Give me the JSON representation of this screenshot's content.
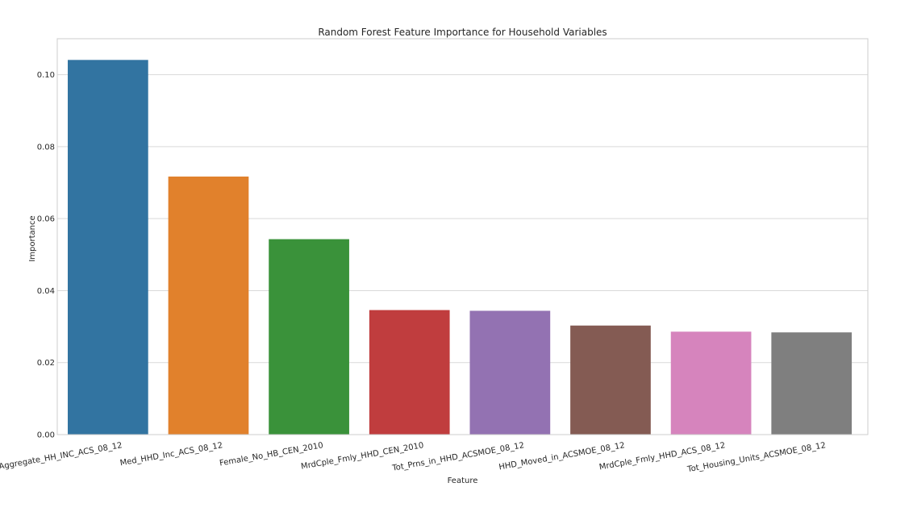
{
  "chart_data": {
    "type": "bar",
    "title": "Random Forest Feature Importance for Household Variables",
    "xlabel": "Feature",
    "ylabel": "Importance",
    "ylim": [
      0,
      0.11
    ],
    "yticks": [
      0.0,
      0.02,
      0.04,
      0.06,
      0.08,
      0.1
    ],
    "ytick_labels": [
      "0.00",
      "0.02",
      "0.04",
      "0.06",
      "0.08",
      "0.10"
    ],
    "categories": [
      "Aggregate_HH_INC_ACS_08_12",
      "Med_HHD_Inc_ACS_08_12",
      "Female_No_HB_CEN_2010",
      "MrdCple_Fmly_HHD_CEN_2010",
      "Tot_Prns_in_HHD_ACSMOE_08_12",
      "HHD_Moved_in_ACSMOE_08_12",
      "MrdCple_Fmly_HHD_ACS_08_12",
      "Tot_Housing_Units_ACSMOE_08_12"
    ],
    "values": [
      0.1041,
      0.0717,
      0.0543,
      0.0346,
      0.0344,
      0.0303,
      0.0286,
      0.0284
    ],
    "colors": [
      "#3274a1",
      "#e1812c",
      "#3a923a",
      "#c03d3e",
      "#9372b2",
      "#845b53",
      "#d684bd",
      "#7f7f7f"
    ],
    "grid": true,
    "grid_axis": "y",
    "legend": "none"
  }
}
